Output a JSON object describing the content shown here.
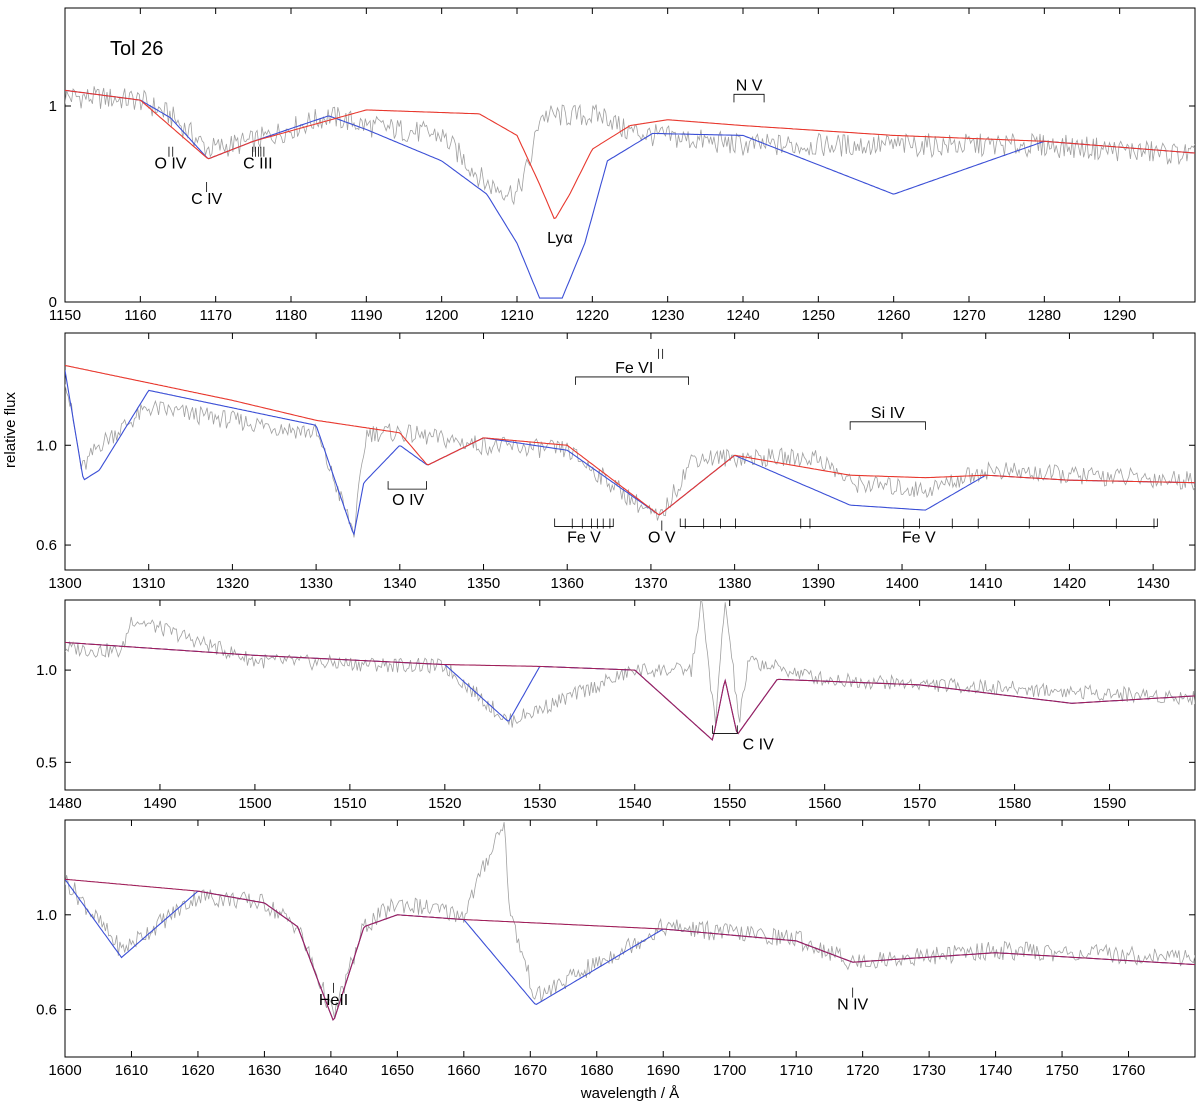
{
  "figure": {
    "object_label": "Tol 26",
    "ylabel": "relative flux",
    "xlabel": "wavelength / Å"
  },
  "colors": {
    "observed": "#a0a0a0",
    "model_interstellar": "#3b4fd6",
    "model_star": "#e8382e",
    "overlap": "#a0205a"
  },
  "chart_data": [
    {
      "type": "line",
      "panel": 1,
      "xlim": [
        1150,
        1300
      ],
      "ylim": [
        0,
        1.5
      ],
      "xticks": [
        1150,
        1160,
        1170,
        1180,
        1190,
        1200,
        1210,
        1220,
        1230,
        1240,
        1250,
        1260,
        1270,
        1280,
        1290
      ],
      "yticks": [
        0,
        1
      ],
      "ytick_labels": [
        "0",
        "1"
      ],
      "series": [
        {
          "role": "observed",
          "x": [
            1150,
            1160,
            1164,
            1169,
            1175,
            1185,
            1190,
            1200,
            1206,
            1210,
            1212,
            1213,
            1222,
            1224,
            1228,
            1240,
            1260,
            1280,
            1300
          ],
          "y": [
            1.05,
            1.03,
            0.95,
            0.78,
            0.82,
            0.95,
            0.9,
            0.85,
            0.6,
            0.55,
            0.75,
            0.95,
            0.95,
            0.88,
            0.85,
            0.8,
            0.8,
            0.8,
            0.75
          ]
        },
        {
          "role": "model_interstellar",
          "x": [
            1150,
            1160,
            1164,
            1169,
            1175,
            1185,
            1190,
            1200,
            1206,
            1210,
            1213,
            1216,
            1219,
            1222,
            1228,
            1240,
            1260,
            1280,
            1300
          ],
          "y": [
            1.08,
            1.03,
            0.94,
            0.73,
            0.82,
            0.95,
            0.88,
            0.72,
            0.55,
            0.3,
            0.02,
            0.02,
            0.3,
            0.72,
            0.86,
            0.85,
            0.55,
            0.82,
            0.76
          ]
        },
        {
          "role": "model_star",
          "x": [
            1150,
            1160,
            1169,
            1175,
            1190,
            1205,
            1210,
            1213,
            1215,
            1217,
            1220,
            1225,
            1230,
            1240,
            1260,
            1280,
            1300
          ],
          "y": [
            1.08,
            1.03,
            0.73,
            0.82,
            0.98,
            0.96,
            0.85,
            0.6,
            0.42,
            0.55,
            0.78,
            0.9,
            0.93,
            0.9,
            0.85,
            0.82,
            0.76
          ]
        }
      ],
      "annotations": [
        {
          "label": "O IV",
          "x": 1164,
          "y": 0.68,
          "ticks": [
            1163.8,
            1164.3
          ]
        },
        {
          "label": "C IV",
          "x": 1168.8,
          "y": 0.5,
          "ticks": [
            1168.8
          ]
        },
        {
          "label": "C III",
          "x": 1175.6,
          "y": 0.68,
          "ticks": [
            1174.9,
            1175.3,
            1175.7,
            1176.0,
            1176.4
          ]
        },
        {
          "label": "Lyα",
          "x": 1215.7,
          "y": 0.3,
          "ticks": []
        },
        {
          "label": "N V",
          "x": 1240.8,
          "y": 1.08,
          "bracket": [
            1238.8,
            1242.8
          ]
        }
      ]
    },
    {
      "type": "line",
      "panel": 2,
      "xlim": [
        1300,
        1435
      ],
      "ylim": [
        0.5,
        1.45
      ],
      "xticks": [
        1300,
        1310,
        1320,
        1330,
        1340,
        1350,
        1360,
        1370,
        1380,
        1390,
        1400,
        1410,
        1420,
        1430
      ],
      "yticks": [
        0.6,
        1.0
      ],
      "ytick_labels": [
        "0.6",
        "1.0"
      ],
      "ylabel": "relative flux",
      "series": [
        {
          "role": "observed",
          "x": [
            1300,
            1302,
            1304,
            1310,
            1320,
            1330,
            1334.5,
            1336,
            1340,
            1350,
            1360,
            1371,
            1375,
            1390,
            1393.8,
            1402.8,
            1410,
            1420,
            1435
          ],
          "y": [
            1.28,
            0.9,
            1.0,
            1.15,
            1.1,
            1.05,
            0.65,
            1.05,
            1.05,
            1.0,
            0.98,
            0.7,
            0.95,
            0.95,
            0.85,
            0.82,
            0.9,
            0.88,
            0.86
          ]
        },
        {
          "role": "model_interstellar",
          "x": [
            1300,
            1302.2,
            1304.1,
            1310,
            1320,
            1330,
            1334.5,
            1335.7,
            1340,
            1343.3,
            1350,
            1360,
            1371,
            1380,
            1393.8,
            1402.8,
            1410,
            1420,
            1435
          ],
          "y": [
            1.3,
            0.86,
            0.9,
            1.22,
            1.15,
            1.08,
            0.64,
            0.85,
            1.0,
            0.92,
            1.03,
            0.98,
            0.72,
            0.96,
            0.76,
            0.74,
            0.88,
            0.86,
            0.85
          ]
        },
        {
          "role": "model_star",
          "x": [
            1300,
            1310,
            1320,
            1330,
            1340,
            1343.3,
            1350,
            1360,
            1371,
            1380,
            1393.8,
            1402.8,
            1410,
            1420,
            1435
          ],
          "y": [
            1.32,
            1.25,
            1.18,
            1.1,
            1.05,
            0.92,
            1.03,
            1.0,
            0.72,
            0.96,
            0.88,
            0.87,
            0.88,
            0.86,
            0.85
          ]
        }
      ],
      "annotations": [
        {
          "label": "Fe VI",
          "x": 1368,
          "y": 1.29,
          "bracket": [
            1361,
            1374.5
          ],
          "ticks": [
            1370.9,
            1371.4
          ]
        },
        {
          "label": "Si IV",
          "x": 1398.3,
          "y": 1.11,
          "bracket": [
            1393.8,
            1402.8
          ]
        },
        {
          "label": "O IV",
          "x": 1341,
          "y": 0.76,
          "bracket": [
            1338.6,
            1343.2
          ],
          "dir": "down"
        },
        {
          "label": "Fe V",
          "x": 1362,
          "y": 0.61,
          "bracket": [
            1358.5,
            1365.5
          ],
          "dir": "down",
          "ticks": [
            1360.6,
            1361.8,
            1362.9,
            1363.6,
            1364.3,
            1365.1
          ]
        },
        {
          "label": "O V",
          "x": 1371.3,
          "y": 0.61,
          "ticks": [
            1371.3
          ]
        },
        {
          "label": "Fe V",
          "x": 1402,
          "y": 0.61,
          "bracket": [
            1373.5,
            1430.5
          ],
          "dir": "down",
          "ticks": [
            1374.1,
            1376.3,
            1378.3,
            1380.1,
            1387.9,
            1389.0,
            1400.2,
            1402.1,
            1406.0,
            1409.1,
            1415.2,
            1420.5,
            1425.6,
            1430.1
          ]
        }
      ]
    },
    {
      "type": "line",
      "panel": 3,
      "xlim": [
        1480,
        1599
      ],
      "ylim": [
        0.35,
        1.38
      ],
      "xticks": [
        1480,
        1490,
        1500,
        1510,
        1520,
        1530,
        1540,
        1550,
        1560,
        1570,
        1580,
        1590
      ],
      "yticks": [
        0.5,
        1.0
      ],
      "ytick_labels": [
        "0.5",
        "1.0"
      ],
      "series": [
        {
          "role": "observed",
          "x": [
            1480,
            1486,
            1487,
            1500,
            1520,
            1526.7,
            1540,
            1546,
            1547,
            1548.5,
            1549.5,
            1551,
            1552,
            1560,
            1580,
            1599
          ],
          "y": [
            1.12,
            1.1,
            1.28,
            1.05,
            1.02,
            0.72,
            1.0,
            1.0,
            1.38,
            0.7,
            1.38,
            0.72,
            1.05,
            0.95,
            0.9,
            0.85
          ]
        },
        {
          "role": "model_interstellar",
          "x": [
            1480,
            1500,
            1520,
            1526.7,
            1530,
            1540,
            1548.2,
            1549.5,
            1550.8,
            1555,
            1570,
            1586,
            1599
          ],
          "y": [
            1.15,
            1.08,
            1.03,
            0.72,
            1.02,
            1.0,
            0.62,
            0.95,
            0.65,
            0.95,
            0.92,
            0.82,
            0.86
          ]
        },
        {
          "role": "model_star",
          "x": [
            1480,
            1500,
            1520,
            1530,
            1540,
            1548.2,
            1549.5,
            1550.8,
            1555,
            1570,
            1586,
            1599
          ],
          "y": [
            1.15,
            1.08,
            1.03,
            1.02,
            1.0,
            0.62,
            0.95,
            0.65,
            0.95,
            0.92,
            0.82,
            0.86
          ]
        }
      ],
      "annotations": [
        {
          "label": "C IV",
          "x": 1553,
          "y": 0.57,
          "bracket": [
            1548.2,
            1550.8
          ],
          "dir": "down"
        }
      ]
    },
    {
      "type": "line",
      "panel": 4,
      "xlim": [
        1600,
        1770
      ],
      "ylim": [
        0.4,
        1.4
      ],
      "xticks": [
        1600,
        1610,
        1620,
        1630,
        1640,
        1650,
        1660,
        1670,
        1680,
        1690,
        1700,
        1710,
        1720,
        1730,
        1740,
        1750,
        1760
      ],
      "yticks": [
        0.6,
        1.0
      ],
      "ytick_labels": [
        "0.6",
        "1.0"
      ],
      "xlabel": "wavelength / Å",
      "series": [
        {
          "role": "observed",
          "x": [
            1600,
            1608.5,
            1620,
            1630,
            1635,
            1640.4,
            1645,
            1650,
            1660,
            1666,
            1667,
            1670.8,
            1690,
            1710,
            1718.5,
            1740,
            1770
          ],
          "y": [
            1.15,
            0.85,
            1.08,
            1.05,
            0.95,
            0.57,
            0.95,
            1.05,
            1.0,
            1.4,
            1.0,
            0.65,
            0.95,
            0.9,
            0.8,
            0.85,
            0.82
          ]
        },
        {
          "role": "model_interstellar",
          "x": [
            1600,
            1608.5,
            1620,
            1630,
            1635,
            1640.4,
            1645,
            1650,
            1660,
            1670.8,
            1690,
            1710,
            1718.5,
            1740,
            1770
          ],
          "y": [
            1.15,
            0.82,
            1.1,
            1.05,
            0.95,
            0.55,
            0.95,
            1.0,
            0.98,
            0.62,
            0.94,
            0.89,
            0.8,
            0.84,
            0.79
          ]
        },
        {
          "role": "model_star",
          "x": [
            1600,
            1620,
            1630,
            1635,
            1640.4,
            1645,
            1650,
            1660,
            1690,
            1710,
            1718.5,
            1740,
            1770
          ],
          "y": [
            1.15,
            1.1,
            1.05,
            0.95,
            0.55,
            0.95,
            1.0,
            0.98,
            0.94,
            0.89,
            0.8,
            0.84,
            0.79
          ]
        }
      ],
      "annotations": [
        {
          "label": "HeII",
          "x": 1640.4,
          "y": 0.62,
          "ticks": [
            1640.4
          ]
        },
        {
          "label": "N IV",
          "x": 1718.5,
          "y": 0.6,
          "ticks": [
            1718.5
          ]
        }
      ]
    }
  ]
}
